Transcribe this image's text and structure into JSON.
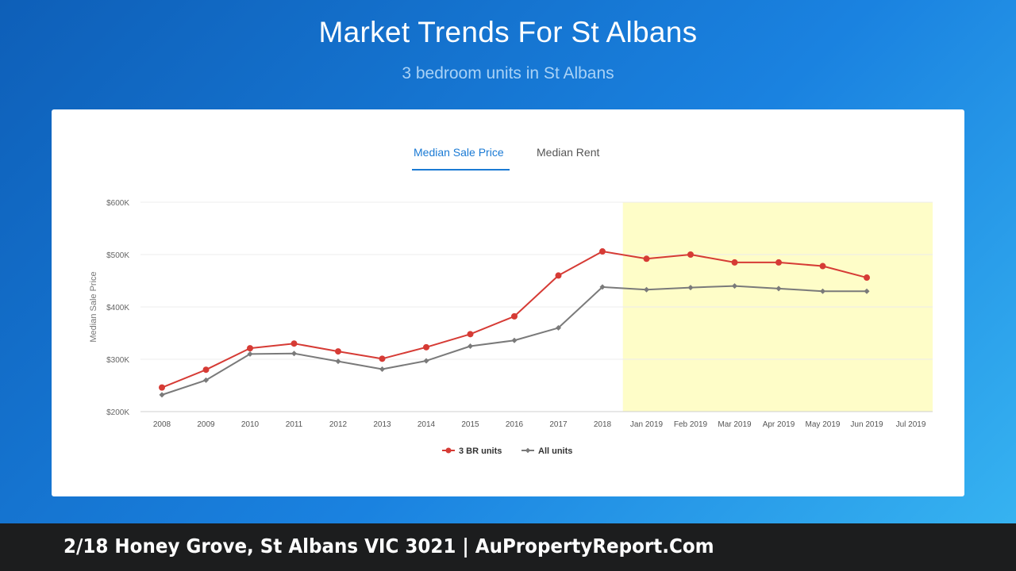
{
  "header": {
    "title": "Market Trends For St Albans",
    "subtitle": "3 bedroom units in St Albans"
  },
  "tabs": [
    {
      "label": "Median Sale Price",
      "active": true
    },
    {
      "label": "Median Rent",
      "active": false
    }
  ],
  "footer": {
    "text": "2/18 Honey Grove, St Albans VIC 3021 | AuPropertyReport.Com"
  },
  "colors": {
    "accent": "#1a7ad4",
    "series_3br": "#d63b35",
    "series_all": "#7a7a7a",
    "highlight_band": "#fefdc8"
  },
  "chart_data": {
    "type": "line",
    "ylabel": "Median Sale Price",
    "ylim": [
      200000,
      600000
    ],
    "yticks": [
      {
        "value": 200000,
        "label": "$200K"
      },
      {
        "value": 300000,
        "label": "$300K"
      },
      {
        "value": 400000,
        "label": "$400K"
      },
      {
        "value": 500000,
        "label": "$500K"
      },
      {
        "value": 600000,
        "label": "$600K"
      }
    ],
    "categories": [
      "2008",
      "2009",
      "2010",
      "2011",
      "2012",
      "2013",
      "2014",
      "2015",
      "2016",
      "2017",
      "2018",
      "Jan 2019",
      "Feb 2019",
      "Mar 2019",
      "Apr 2019",
      "May 2019",
      "Jun 2019",
      "Jul 2019"
    ],
    "highlight_range": [
      "Jan 2019",
      "Jul 2019"
    ],
    "grid": true,
    "legend": "bottom",
    "series": [
      {
        "name": "3 BR units",
        "color": "#d63b35",
        "marker": "circle",
        "values": [
          246000,
          280000,
          321000,
          330000,
          315000,
          301000,
          323000,
          348000,
          382000,
          460000,
          506000,
          492000,
          500000,
          485000,
          485000,
          478000,
          456000,
          null
        ]
      },
      {
        "name": "All units",
        "color": "#7a7a7a",
        "marker": "diamond",
        "values": [
          232000,
          260000,
          310000,
          311000,
          296000,
          281000,
          297000,
          325000,
          336000,
          360000,
          438000,
          433000,
          437000,
          440000,
          435000,
          430000,
          430000,
          null
        ]
      }
    ]
  }
}
